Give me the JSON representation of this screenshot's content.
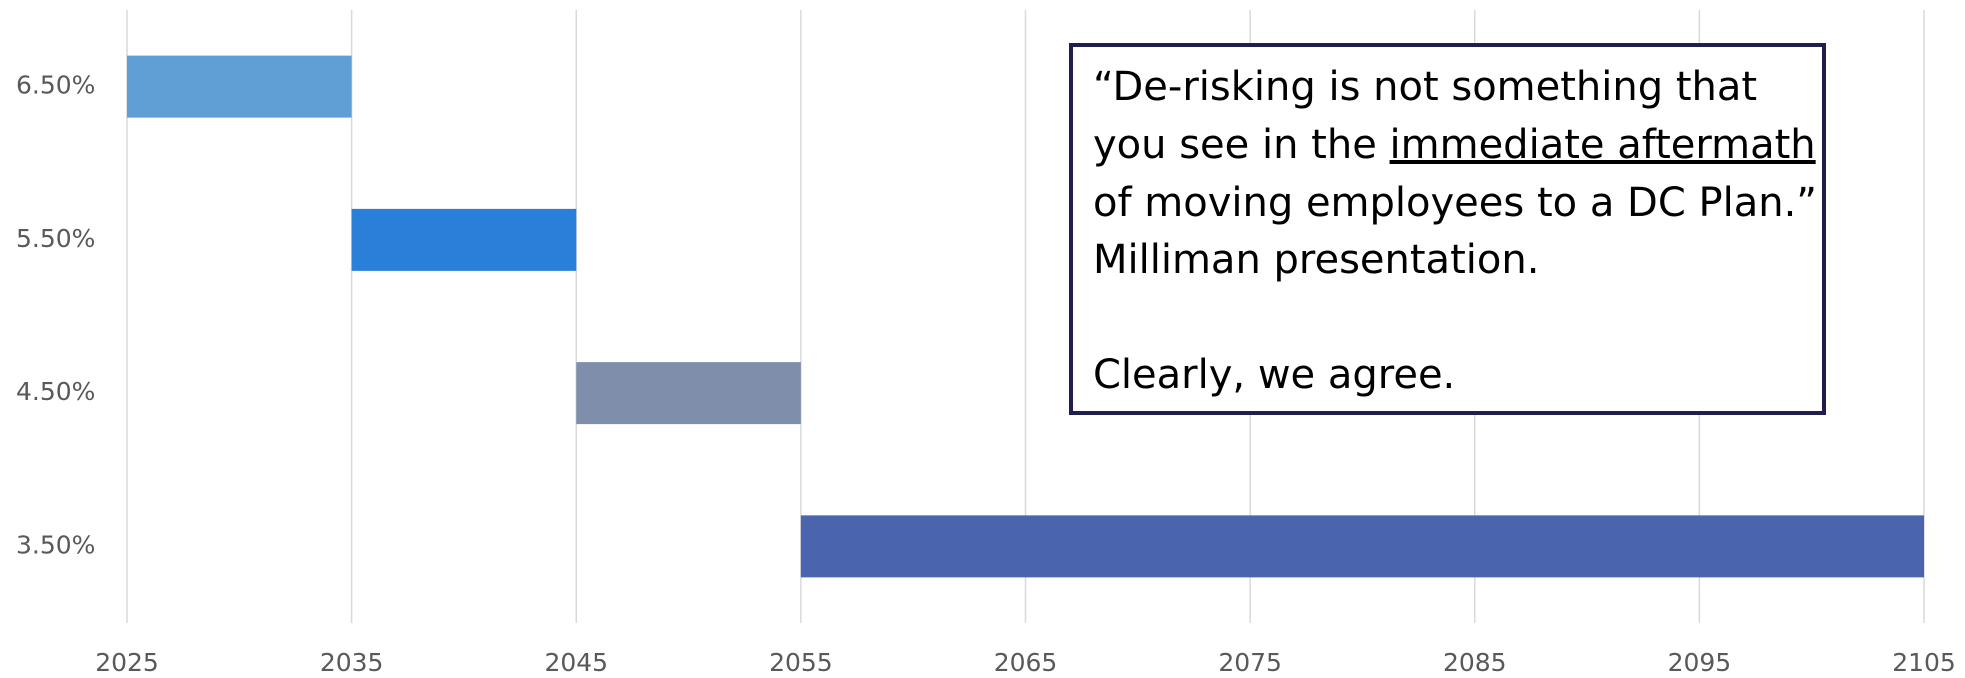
{
  "chart_data": {
    "type": "floating_bar",
    "categories": [
      "6.50%",
      "5.50%",
      "4.50%",
      "3.50%"
    ],
    "starts": [
      2025,
      2035,
      2045,
      2055
    ],
    "ends": [
      2035,
      2045,
      2055,
      2105
    ],
    "colors": [
      "#5f9fd6",
      "#2a7fd8",
      "#7f8fab",
      "#4a65ae"
    ],
    "xlim": [
      2025,
      2105
    ],
    "xticks": [
      2025,
      2035,
      2045,
      2055,
      2065,
      2075,
      2085,
      2095,
      2105
    ],
    "grid": true,
    "annotation": {
      "line1": "“De-risking is not something that",
      "line2_start": "you see in the ",
      "line2_underlined": "immediate aftermath",
      "line3": "of moving employees to a DC Plan.”",
      "line4": "Milliman presentation.",
      "line5": "Clearly, we agree."
    }
  }
}
